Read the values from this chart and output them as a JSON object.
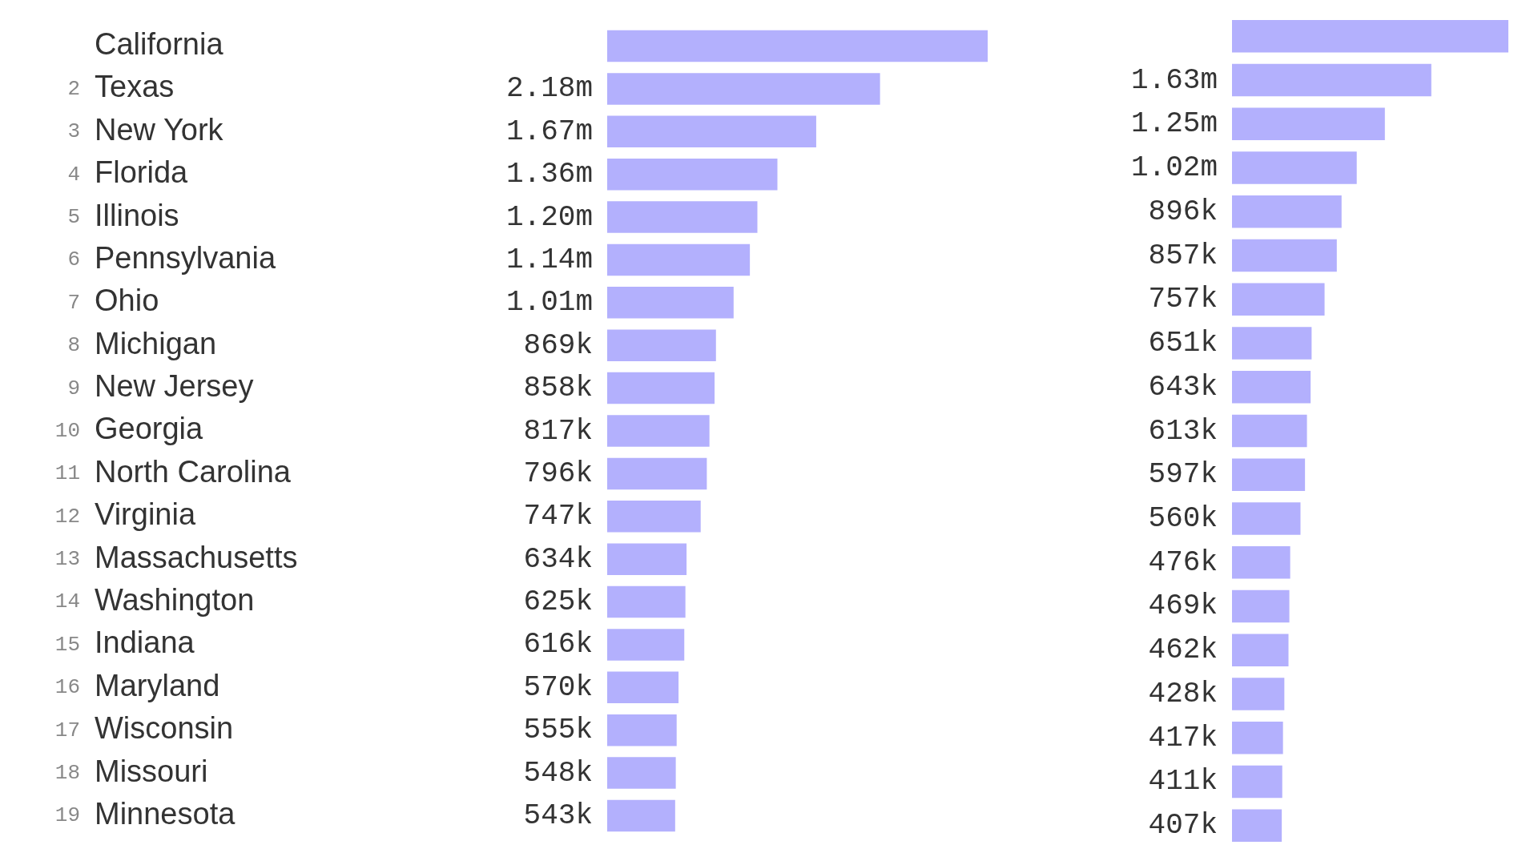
{
  "chart_data": [
    {
      "type": "bar",
      "orientation": "horizontal",
      "color": "#b3b0fd",
      "categories": [
        "California",
        "Texas",
        "New York",
        "Florida",
        "Illinois",
        "Pennsylvania",
        "Ohio",
        "Michigan",
        "New Jersey",
        "Georgia",
        "North Carolina",
        "Virginia",
        "Massachusetts",
        "Washington",
        "Indiana",
        "Maryland",
        "Wisconsin",
        "Missouri",
        "Minnesota"
      ],
      "values": [
        3040000,
        2180000,
        1670000,
        1360000,
        1200000,
        1140000,
        1010000,
        869000,
        858000,
        817000,
        796000,
        747000,
        634000,
        625000,
        616000,
        570000,
        555000,
        548000,
        543000
      ],
      "value_labels": [
        null,
        "2.18m",
        "1.67m",
        "1.36m",
        "1.20m",
        "1.14m",
        "1.01m",
        "869k",
        "858k",
        "817k",
        "796k",
        "747k",
        "634k",
        "625k",
        "616k",
        "570k",
        "555k",
        "548k",
        "543k"
      ],
      "annotations": [
        "2",
        "3",
        "4",
        "5",
        "6",
        "7",
        "8",
        "9",
        "10",
        "11",
        "12",
        "13",
        "14",
        "15",
        "16",
        "17",
        "18",
        "19"
      ]
    },
    {
      "type": "bar",
      "orientation": "horizontal",
      "color": "#b3b0fd",
      "tick_labels": false,
      "values": [
        2260000,
        1630000,
        1250000,
        1020000,
        896000,
        857000,
        757000,
        651000,
        643000,
        613000,
        597000,
        560000,
        476000,
        469000,
        462000,
        428000,
        417000,
        411000,
        407000
      ],
      "value_labels": [
        null,
        "1.63m",
        "1.25m",
        "1.02m",
        "896k",
        "857k",
        "757k",
        "651k",
        "643k",
        "613k",
        "597k",
        "560k",
        "476k",
        "469k",
        "462k",
        "428k",
        "417k",
        "411k",
        "407k"
      ]
    }
  ]
}
